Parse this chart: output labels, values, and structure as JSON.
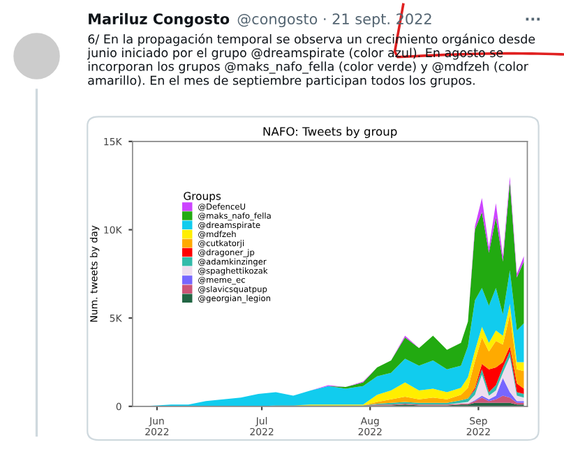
{
  "chart_data": {
    "type": "area",
    "stacked": true,
    "title": "NAFO: Tweets by group",
    "ylabel": "Num. tweets by day",
    "legend_title": "Groups",
    "legend": "center left",
    "annotations": [
      "Mariluz Congosto",
      "@congosto · 21 sept. 2022",
      "···",
      "6/ En la propagación temporal se observa un crecimiento orgánico desde junio iniciado por el grupo @dreamspirate (color azul). En agosto se incorporan los grupos @maks_nafo_fella (color verde) y @mdfzeh (color amarillo). En el mes de septiembre participan todos los grupos."
    ],
    "x": [
      "2022-05-27",
      "2022-06-01",
      "2022-06-05",
      "2022-06-10",
      "2022-06-15",
      "2022-06-20",
      "2022-06-25",
      "2022-06-30",
      "2022-07-05",
      "2022-07-10",
      "2022-07-15",
      "2022-07-20",
      "2022-07-25",
      "2022-07-30",
      "2022-08-03",
      "2022-08-07",
      "2022-08-11",
      "2022-08-15",
      "2022-08-19",
      "2022-08-23",
      "2022-08-27",
      "2022-08-29",
      "2022-08-31",
      "2022-09-02",
      "2022-09-04",
      "2022-09-06",
      "2022-09-08",
      "2022-09-10",
      "2022-09-12",
      "2022-09-14"
    ],
    "xlim": [
      "2022-05-25",
      "2022-09-15"
    ],
    "xticks": [
      {
        "value": "2022-06-01",
        "label": "Jun\n2022"
      },
      {
        "value": "2022-07-01",
        "label": "Jul\n2022"
      },
      {
        "value": "2022-08-01",
        "label": "Aug\n2022"
      },
      {
        "value": "2022-09-01",
        "label": "Sep\n2022"
      }
    ],
    "ylim": [
      0,
      15000
    ],
    "yticks": [
      0,
      {
        "value": 5000,
        "label": "5K"
      },
      {
        "value": 10000,
        "label": "10K"
      },
      {
        "value": 15000,
        "label": "15K"
      }
    ],
    "series": [
      {
        "name": "@georgian_legion",
        "color": "#226644",
        "values": [
          0,
          0,
          0,
          0,
          0,
          0,
          0,
          0,
          50,
          50,
          50,
          50,
          50,
          50,
          50,
          50,
          100,
          50,
          50,
          50,
          100,
          100,
          200,
          200,
          200,
          200,
          200,
          200,
          100,
          100
        ]
      },
      {
        "name": "@slavicsquatpup",
        "color": "#cc5577",
        "values": [
          0,
          0,
          0,
          0,
          0,
          0,
          0,
          0,
          0,
          0,
          0,
          0,
          0,
          0,
          50,
          50,
          50,
          50,
          50,
          50,
          50,
          50,
          100,
          300,
          100,
          200,
          400,
          300,
          100,
          100
        ]
      },
      {
        "name": "@meme_ec",
        "color": "#7766ff",
        "values": [
          0,
          0,
          0,
          0,
          0,
          0,
          0,
          0,
          0,
          0,
          0,
          0,
          0,
          0,
          0,
          0,
          0,
          0,
          0,
          0,
          0,
          0,
          50,
          100,
          100,
          200,
          1000,
          300,
          100,
          100
        ]
      },
      {
        "name": "@spaghettikozak",
        "color": "#eeddee",
        "values": [
          0,
          0,
          0,
          0,
          0,
          0,
          0,
          0,
          0,
          0,
          0,
          0,
          0,
          0,
          0,
          0,
          0,
          0,
          0,
          0,
          50,
          100,
          300,
          1200,
          200,
          300,
          300,
          2000,
          300,
          200
        ]
      },
      {
        "name": "@adamkinzinger",
        "color": "#33bbaa",
        "values": [
          0,
          0,
          0,
          0,
          0,
          0,
          0,
          0,
          0,
          0,
          0,
          0,
          0,
          0,
          50,
          100,
          100,
          100,
          100,
          100,
          150,
          200,
          300,
          300,
          200,
          300,
          300,
          300,
          200,
          200
        ]
      },
      {
        "name": "@dragoner_jp",
        "color": "#ff0000",
        "values": [
          0,
          0,
          0,
          0,
          0,
          0,
          0,
          0,
          0,
          0,
          0,
          0,
          0,
          0,
          0,
          0,
          0,
          0,
          0,
          0,
          0,
          0,
          100,
          300,
          1300,
          1000,
          300,
          300,
          500,
          300
        ]
      },
      {
        "name": "@cutkatorji",
        "color": "#ffaa00",
        "values": [
          0,
          0,
          0,
          0,
          0,
          0,
          0,
          0,
          0,
          0,
          0,
          0,
          0,
          0,
          100,
          200,
          300,
          200,
          300,
          200,
          300,
          600,
          1500,
          1500,
          1000,
          1500,
          1000,
          1800,
          800,
          1000
        ]
      },
      {
        "name": "@mdfzeh",
        "color": "#ffee00",
        "values": [
          0,
          0,
          0,
          0,
          0,
          0,
          0,
          0,
          0,
          0,
          50,
          50,
          50,
          50,
          400,
          500,
          800,
          500,
          500,
          400,
          400,
          600,
          600,
          600,
          500,
          600,
          500,
          600,
          400,
          500
        ]
      },
      {
        "name": "@dreamspirate",
        "color": "#11ccee",
        "values": [
          0,
          50,
          100,
          100,
          300,
          400,
          500,
          700,
          750,
          550,
          800,
          1050,
          900,
          1050,
          1050,
          1000,
          1350,
          1400,
          1600,
          1300,
          1250,
          1750,
          2850,
          2200,
          2100,
          2400,
          1200,
          1900,
          1800,
          2200
        ]
      },
      {
        "name": "@maks_nafo_fella",
        "color": "#22aa11",
        "values": [
          0,
          0,
          0,
          0,
          0,
          0,
          0,
          0,
          0,
          0,
          0,
          0,
          100,
          200,
          500,
          700,
          1200,
          1000,
          1400,
          1100,
          1300,
          1400,
          4000,
          4300,
          3000,
          4000,
          3000,
          5000,
          3000,
          3500
        ]
      },
      {
        "name": "@DefenceU",
        "color": "#cc44ff",
        "values": [
          0,
          0,
          0,
          0,
          0,
          0,
          0,
          0,
          0,
          0,
          0,
          50,
          0,
          50,
          0,
          0,
          100,
          0,
          0,
          0,
          0,
          0,
          200,
          800,
          300,
          800,
          300,
          300,
          200,
          300
        ]
      }
    ]
  }
}
